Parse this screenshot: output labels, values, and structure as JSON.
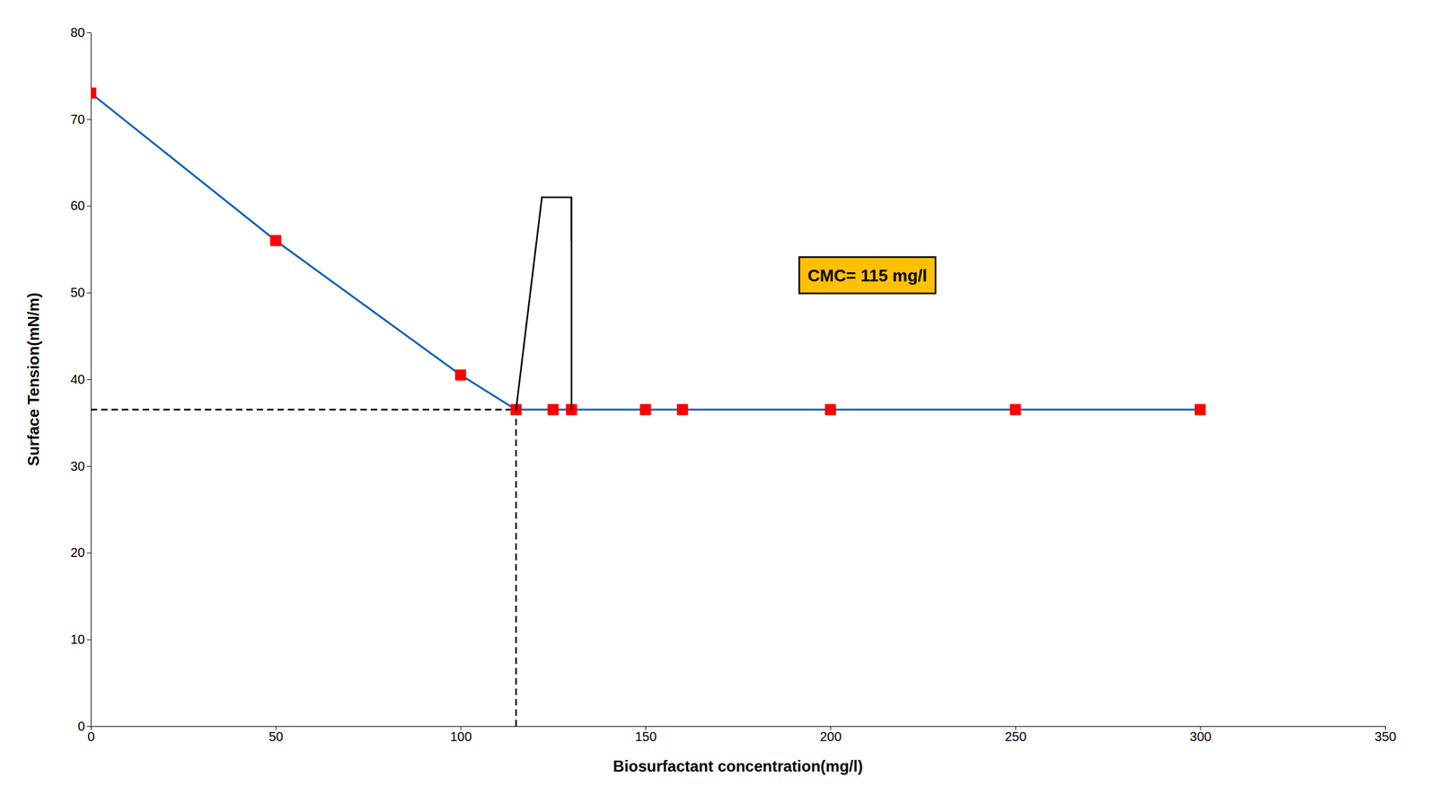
{
  "chart_data": {
    "type": "line",
    "x_label": "Biosurfactant concentration(mg/l)",
    "y_label": "Surface Tension(mN/m)",
    "x": [
      0,
      50,
      100,
      115,
      125,
      130,
      150,
      160,
      200,
      250,
      300
    ],
    "series": [
      {
        "color": "#1564b8",
        "marker": "square",
        "colors": [
          "#ff0000",
          "#ff0000",
          "#ff0000",
          "#ff0000",
          "#ff0000",
          "#ff0000",
          "#ff0000",
          "#ff0000",
          "#ff0000",
          "#ff0000",
          "#ff0000"
        ],
        "values": [
          73,
          56,
          40.5,
          36.5,
          36.5,
          36.5,
          36.5,
          36.5,
          36.5,
          36.5,
          36.5
        ]
      }
    ],
    "xlim": [
      0,
      350
    ],
    "ylim": [
      0,
      80
    ],
    "xticks": [
      0,
      50,
      100,
      150,
      200,
      250,
      300,
      350
    ],
    "yticks": [
      0,
      10,
      20,
      30,
      40,
      50,
      60,
      70,
      80
    ],
    "grid": false,
    "lines": [
      {
        "x": [
          0,
          115
        ],
        "y": [
          36.5,
          36.5
        ],
        "line_style": "dashed",
        "color": "#000000"
      },
      {
        "x": [
          115,
          115
        ],
        "y": [
          0,
          36.5
        ],
        "line_style": "dashed",
        "color": "#000000"
      },
      {
        "x": [
          115,
          122
        ],
        "y": [
          36.5,
          61
        ],
        "line_style": "solid",
        "color": "#000000"
      },
      {
        "x": [
          130,
          130
        ],
        "y": [
          36.5,
          61
        ],
        "line_style": "solid",
        "color": "#000000"
      },
      {
        "x": [
          122,
          130
        ],
        "y": [
          61,
          61
        ],
        "line_style": "solid",
        "color": "#000000"
      },
      {
        "x": [
          130,
          130
        ],
        "y": [
          61,
          56
        ],
        "line_style": "solid",
        "color": "#000000"
      }
    ],
    "annotations": [
      {
        "text": "CMC= 115 mg/l",
        "x": 210,
        "y": 52,
        "color": "#FFC000"
      }
    ]
  }
}
